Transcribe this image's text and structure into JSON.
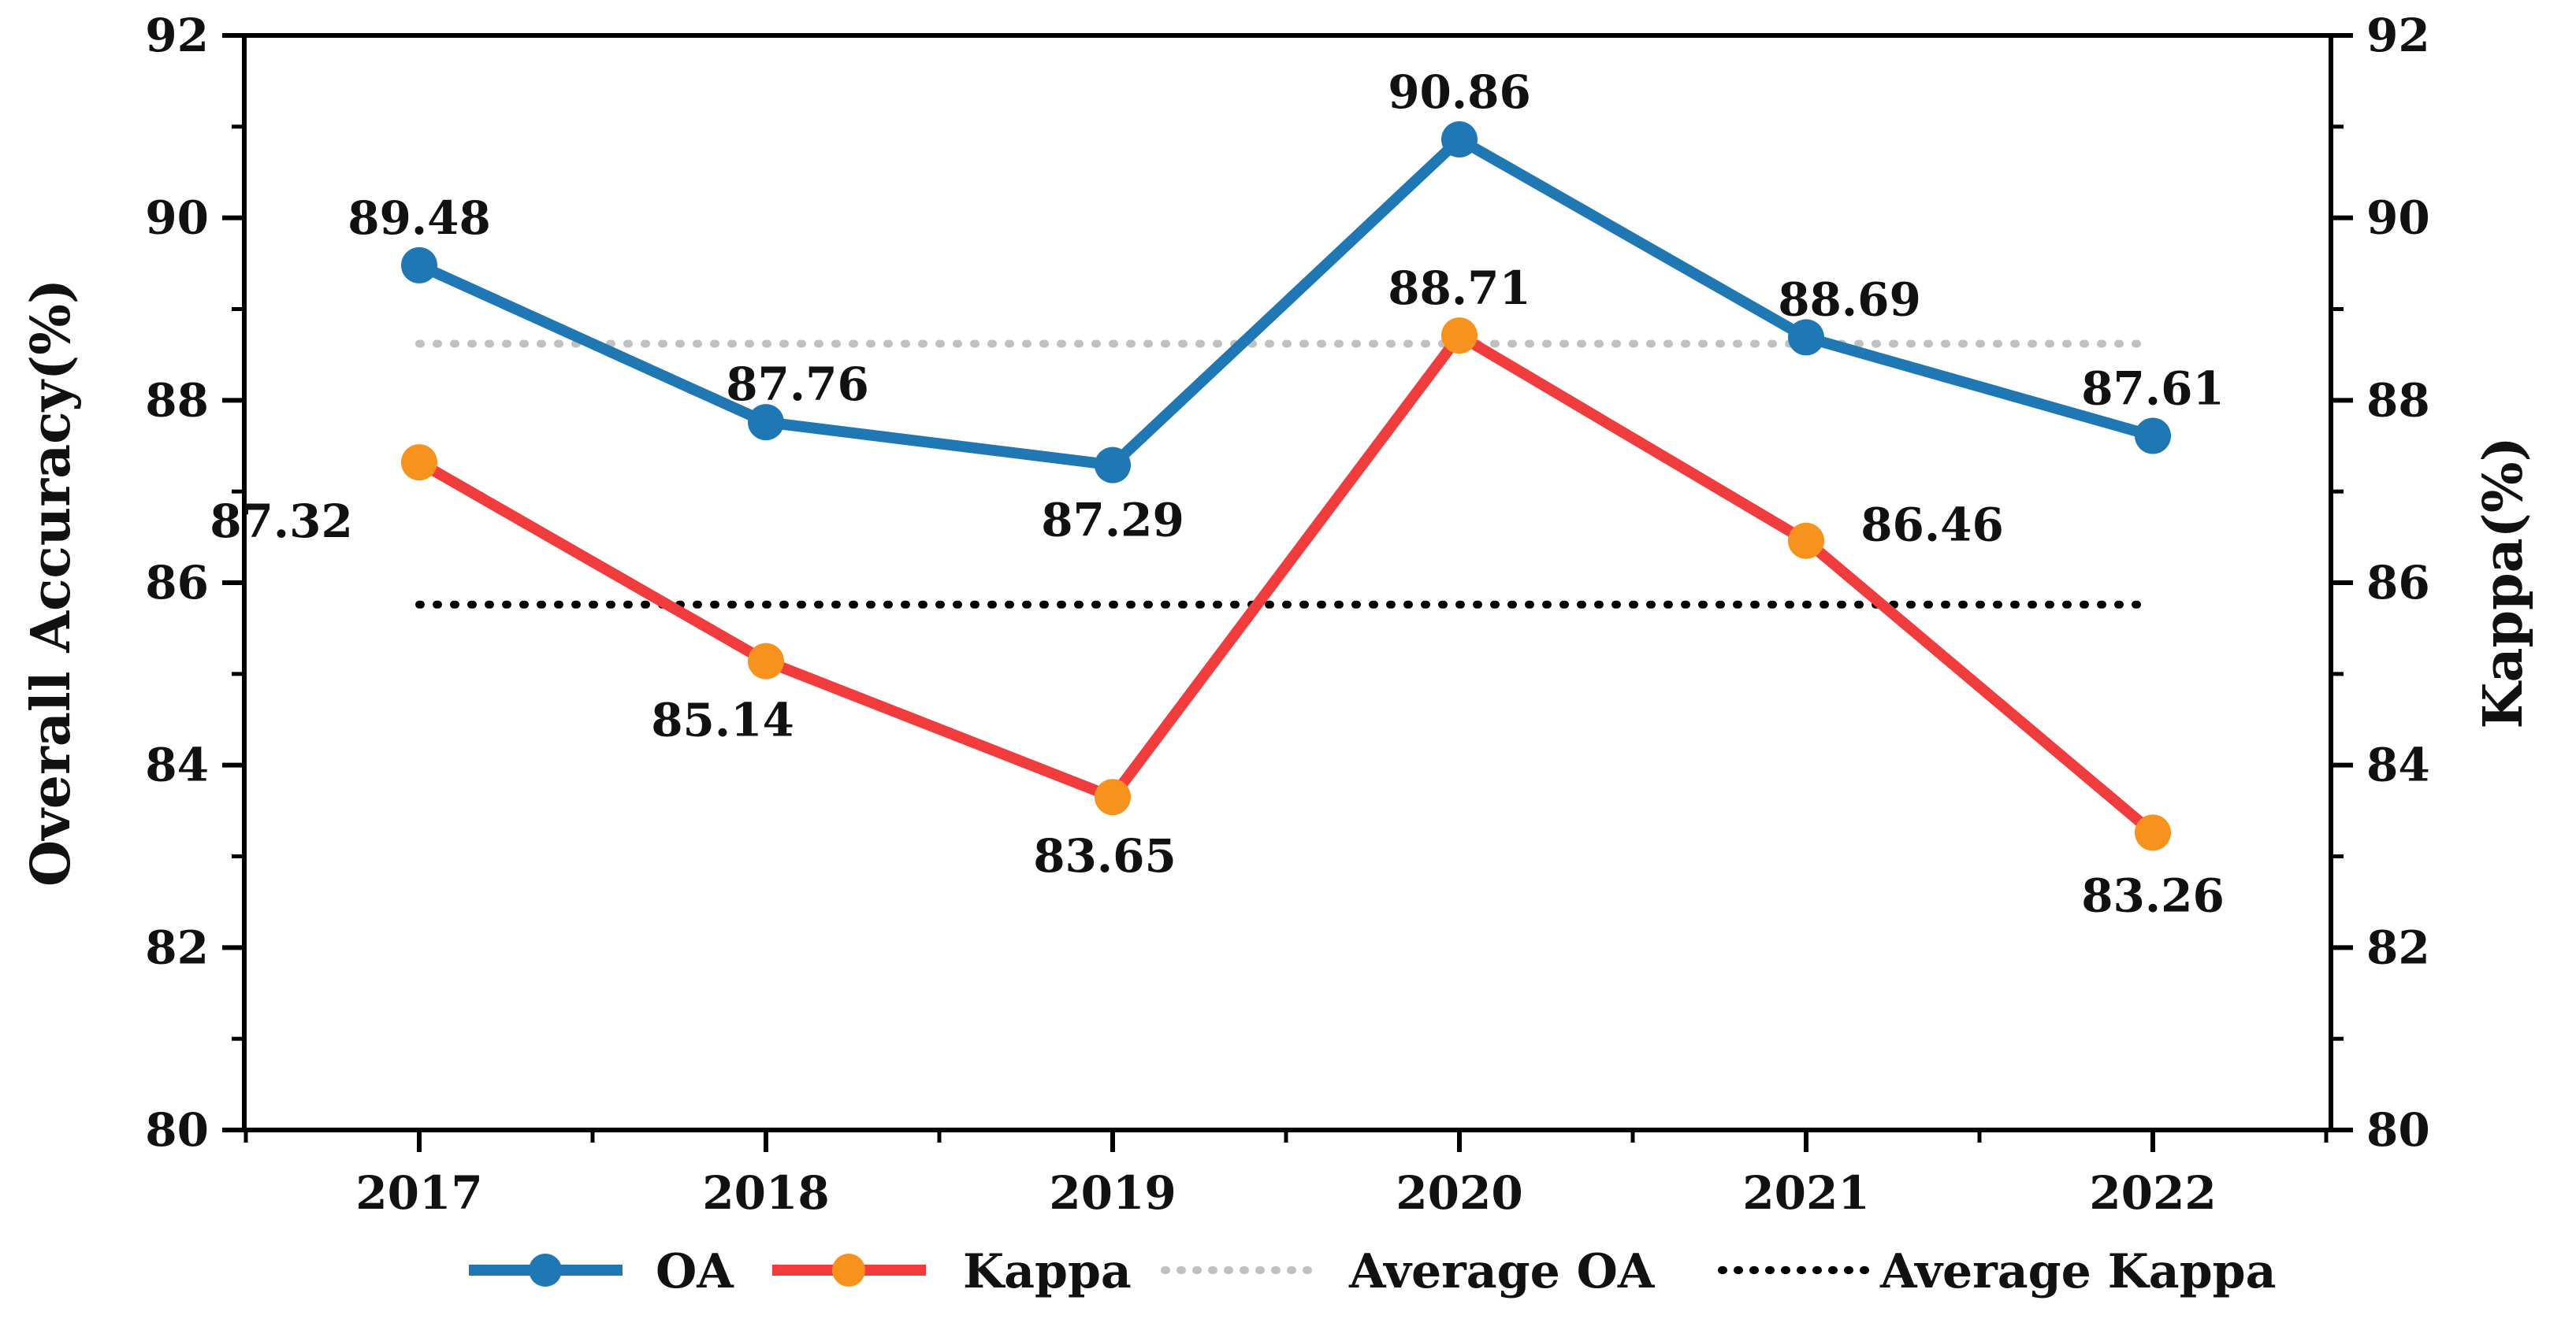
{
  "chart_data": {
    "type": "line",
    "categories": [
      "2017",
      "2018",
      "2019",
      "2020",
      "2021",
      "2022"
    ],
    "y_left": {
      "label": "Overall Accuracy(%)",
      "range": [
        80,
        92
      ],
      "ticks": [
        "80",
        "82",
        "84",
        "86",
        "88",
        "90",
        "92"
      ]
    },
    "y_right": {
      "label": "Kappa(%)",
      "range": [
        80,
        92
      ],
      "ticks": [
        "80",
        "82",
        "84",
        "86",
        "88",
        "90",
        "92"
      ]
    },
    "series": [
      {
        "name": "OA",
        "axis": "left",
        "color": "#1f77b4",
        "marker_color": "#1f77b4",
        "values": [
          89.48,
          87.76,
          87.29,
          90.86,
          88.69,
          87.61
        ],
        "labels": [
          "89.48",
          "87.76",
          "87.29",
          "90.86",
          "88.69",
          "87.61"
        ]
      },
      {
        "name": "Kappa",
        "axis": "right",
        "color": "#f03c3c",
        "marker_color": "#f7921e",
        "values": [
          87.32,
          85.14,
          83.65,
          88.71,
          86.46,
          83.26
        ],
        "labels": [
          "87.32",
          "85.14",
          "83.65",
          "88.71",
          "86.46",
          "83.26"
        ]
      }
    ],
    "reference_lines": [
      {
        "name": "Average OA",
        "value": 88.62,
        "color": "#c0c0c0",
        "style": "dotted"
      },
      {
        "name": "Average Kappa",
        "value": 85.76,
        "color": "#000000",
        "style": "dotted"
      }
    ],
    "legend_position": "bottom",
    "grid": false
  }
}
